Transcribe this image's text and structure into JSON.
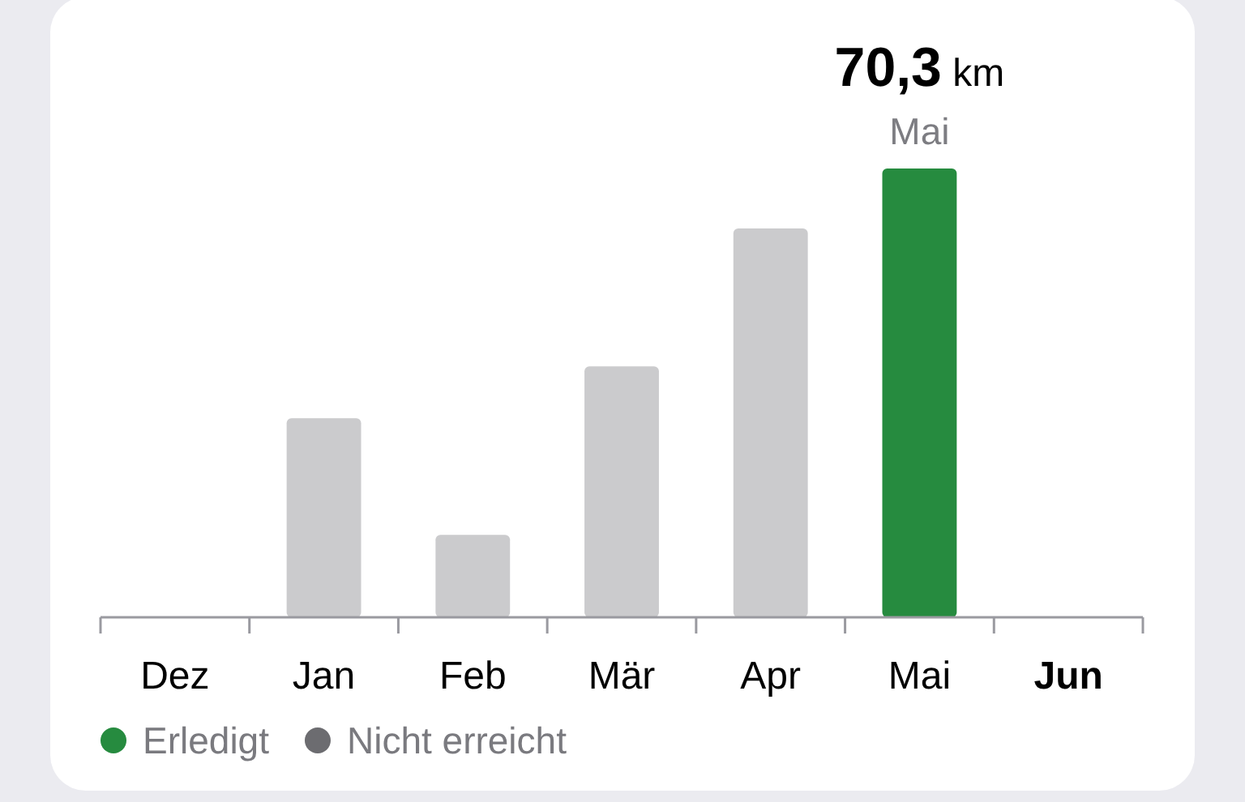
{
  "chart_data": {
    "type": "bar",
    "categories": [
      "Dez",
      "Jan",
      "Feb",
      "Mär",
      "Apr",
      "Mai",
      "Jun"
    ],
    "stacked": true,
    "legend": "bottom left",
    "series": [
      {
        "name": "Erledigt",
        "color": "#268b3f",
        "values": [
          null,
          null,
          null,
          null,
          null,
          70.3,
          null
        ],
        "value_labels": [
          null,
          null,
          null,
          null,
          null,
          "70,3 km",
          null
        ]
      },
      {
        "name": "Nicht erreicht",
        "color": "#6c6c70",
        "values": [
          null,
          null,
          null,
          null,
          null,
          null,
          null
        ]
      },
      {
        "color": "#cbcbcd",
        "values": [
          null,
          31.2,
          12.9,
          39.3,
          60.9,
          null,
          null
        ]
      }
    ],
    "annotations": [
      {
        "text": "Mai",
        "x": "Mai",
        "y": 70.3
      }
    ]
  }
}
